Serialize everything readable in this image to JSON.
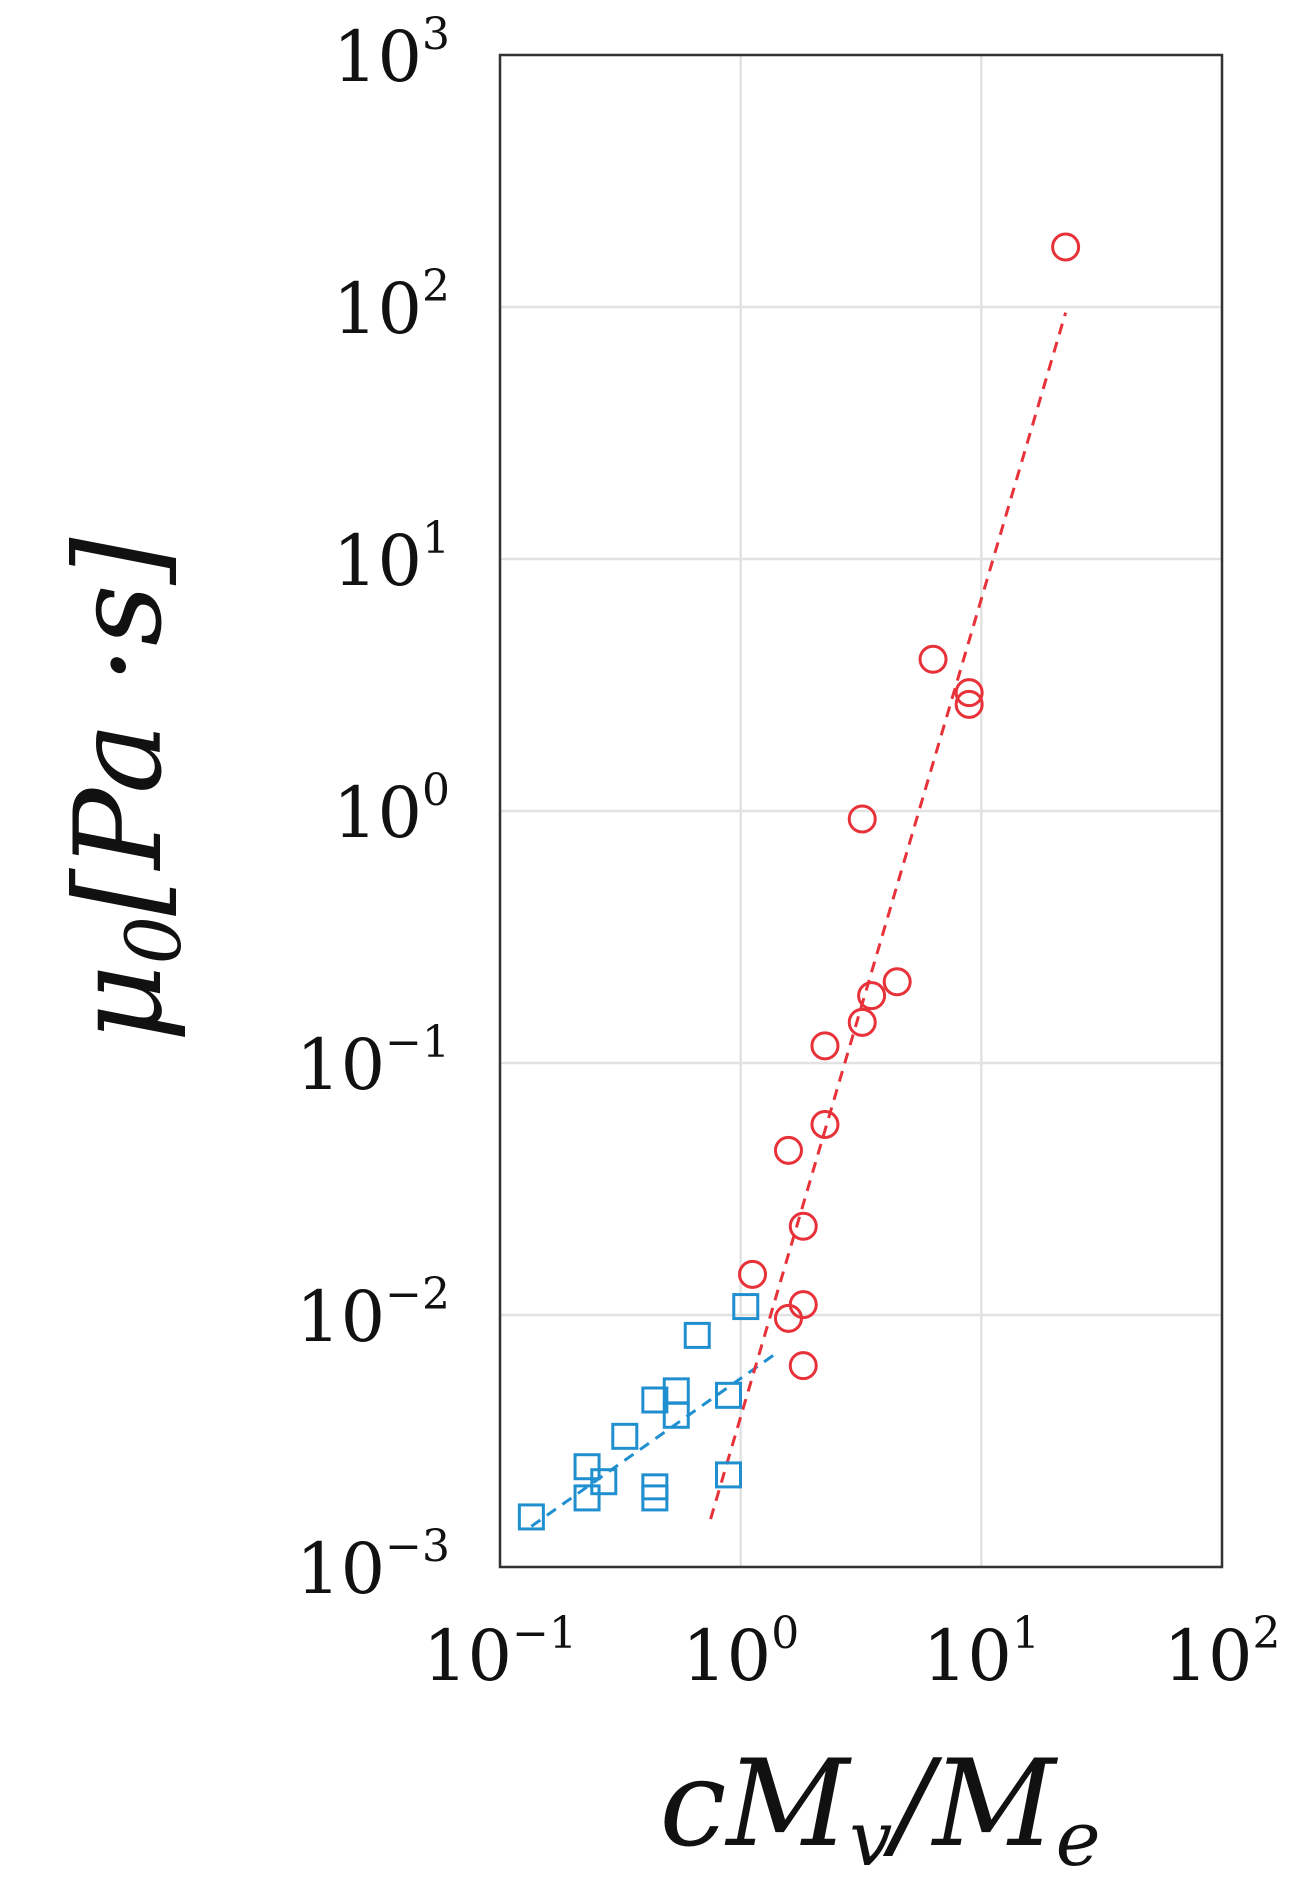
{
  "chart_data": {
    "type": "scatter",
    "title": "",
    "xlabel": {
      "main": "cM",
      "sub_v": "v",
      "slash": "/M",
      "sub_e": "e"
    },
    "ylabel": {
      "main": "μ",
      "sub": "0",
      "unit": "[Pa ·s]"
    },
    "x_scale": "log",
    "y_scale": "log",
    "xlim": [
      0.1,
      100
    ],
    "ylim": [
      0.001,
      1000
    ],
    "grid": true,
    "legend": "none",
    "x_ticks": [
      {
        "value": 0.1,
        "base": "10",
        "exp": "−1"
      },
      {
        "value": 1,
        "base": "10",
        "exp": "0"
      },
      {
        "value": 10,
        "base": "10",
        "exp": "1"
      },
      {
        "value": 100,
        "base": "10",
        "exp": "2"
      }
    ],
    "y_ticks": [
      {
        "value": 0.001,
        "base": "10",
        "exp": "−3"
      },
      {
        "value": 0.01,
        "base": "10",
        "exp": "−2"
      },
      {
        "value": 0.1,
        "base": "10",
        "exp": "−1"
      },
      {
        "value": 1,
        "base": "10",
        "exp": "0"
      },
      {
        "value": 10,
        "base": "10",
        "exp": "1"
      },
      {
        "value": 100,
        "base": "10",
        "exp": "2"
      },
      {
        "value": 1000,
        "base": "10",
        "exp": "3"
      }
    ],
    "series": [
      {
        "marker": "square",
        "color": "#1f8fd0",
        "points": [
          [
            0.135,
            0.00158
          ],
          [
            0.23,
            0.0025
          ],
          [
            0.23,
            0.00188
          ],
          [
            0.27,
            0.00218
          ],
          [
            0.33,
            0.0033
          ],
          [
            0.44,
            0.0046
          ],
          [
            0.44,
            0.00208
          ],
          [
            0.44,
            0.00188
          ],
          [
            0.54,
            0.005
          ],
          [
            0.54,
            0.004
          ],
          [
            0.66,
            0.0083
          ],
          [
            0.89,
            0.0048
          ],
          [
            0.89,
            0.00232
          ],
          [
            1.05,
            0.0108
          ]
        ],
        "fit_line": [
          [
            0.135,
            0.00145
          ],
          [
            1.45,
            0.0072
          ]
        ]
      },
      {
        "marker": "circle",
        "color": "#e8323a",
        "points": [
          [
            1.12,
            0.0145
          ],
          [
            1.58,
            0.0097
          ],
          [
            1.58,
            0.045
          ],
          [
            1.82,
            0.0225
          ],
          [
            1.82,
            0.011
          ],
          [
            1.82,
            0.0063
          ],
          [
            2.24,
            0.057
          ],
          [
            2.24,
            0.117
          ],
          [
            3.2,
            0.145
          ],
          [
            3.5,
            0.185
          ],
          [
            4.47,
            0.21
          ],
          [
            3.2,
            0.93
          ],
          [
            6.3,
            4.0
          ],
          [
            8.9,
            2.95
          ],
          [
            8.9,
            2.65
          ],
          [
            22.4,
            173
          ]
        ],
        "fit_line": [
          [
            0.75,
            0.00155
          ],
          [
            22.4,
            95
          ]
        ]
      }
    ]
  }
}
